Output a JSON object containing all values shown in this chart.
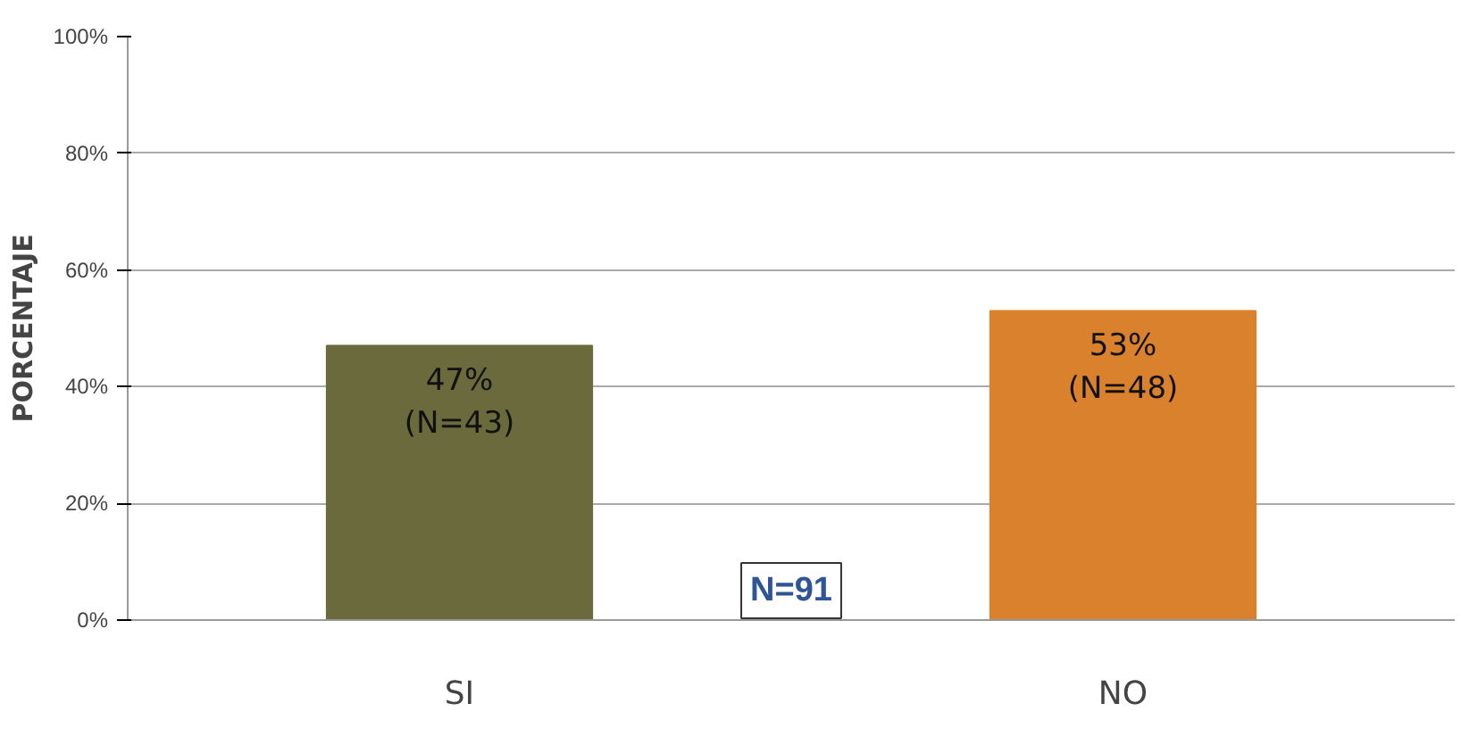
{
  "chart_data": {
    "type": "bar",
    "ylabel": "PORCENTAJE",
    "categories": [
      "SI",
      "NO"
    ],
    "values": [
      47,
      53
    ],
    "colors": [
      "#6b6a3c",
      "#d9812c"
    ],
    "value_labels": [
      "47%\n(N=43)",
      "53%\n(N=48)"
    ],
    "ylim": [
      0,
      100
    ],
    "yticks": [
      {
        "value": 0,
        "label": "0%"
      },
      {
        "value": 20,
        "label": "20%"
      },
      {
        "value": 40,
        "label": "40%"
      },
      {
        "value": 60,
        "label": "60%"
      },
      {
        "value": 80,
        "label": "80%"
      },
      {
        "value": 100,
        "label": "100%"
      }
    ],
    "grid": "y",
    "annotations": [
      "N=91"
    ]
  }
}
